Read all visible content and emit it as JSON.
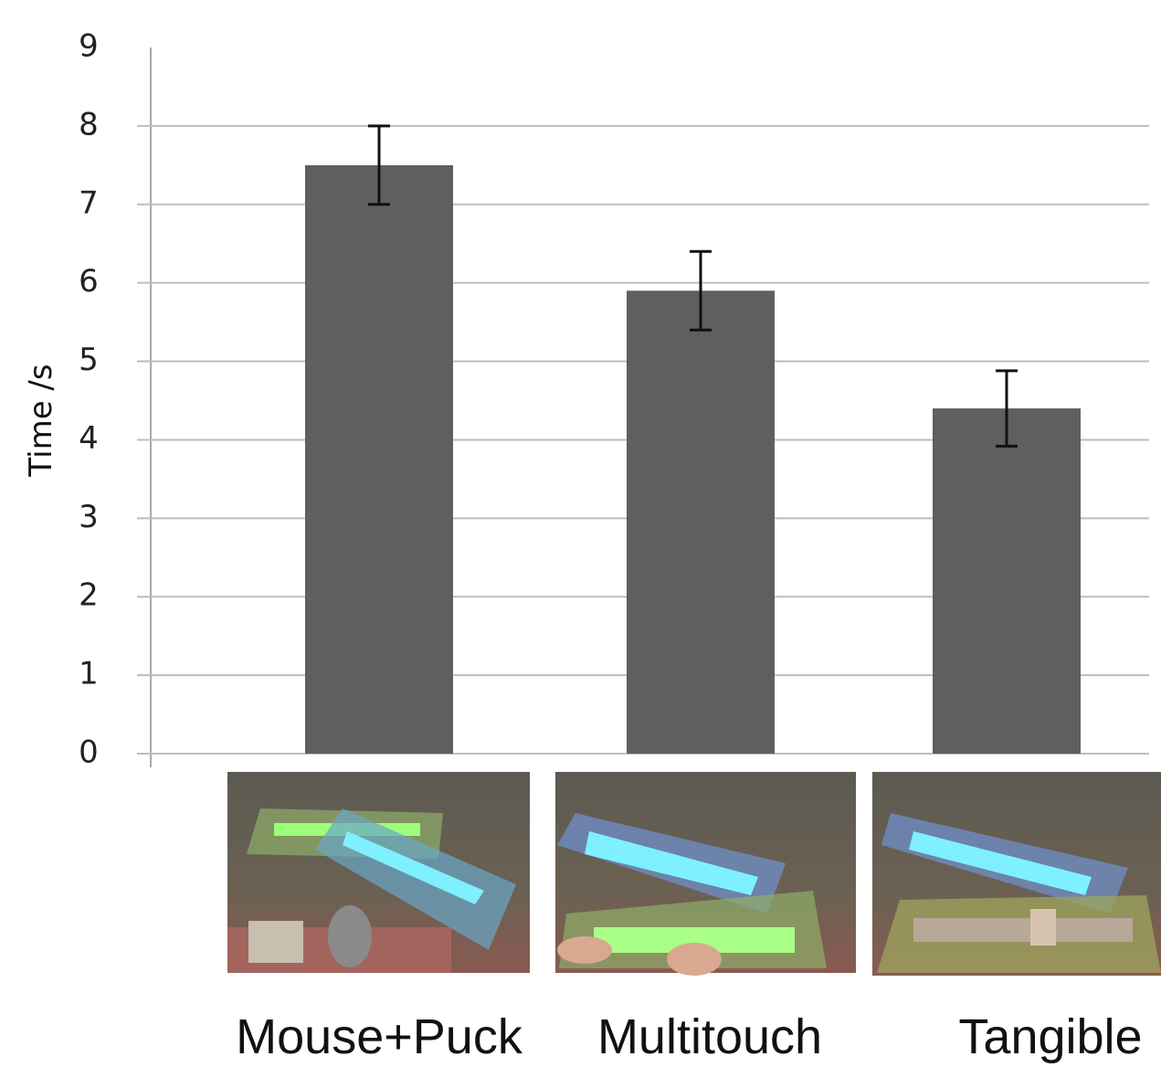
{
  "chart_data": {
    "type": "bar",
    "y_label": "Time /s",
    "categories": [
      "Mouse+Puck",
      "Multitouch",
      "Tangible"
    ],
    "values": [
      7.5,
      5.9,
      4.4
    ],
    "errors": [
      0.5,
      0.5,
      0.48
    ],
    "color": "#5f5f5f",
    "ylim": [
      0,
      9
    ],
    "yticks": [
      0,
      1,
      2,
      3,
      4,
      5,
      6,
      7,
      8,
      9
    ],
    "grid": true
  }
}
